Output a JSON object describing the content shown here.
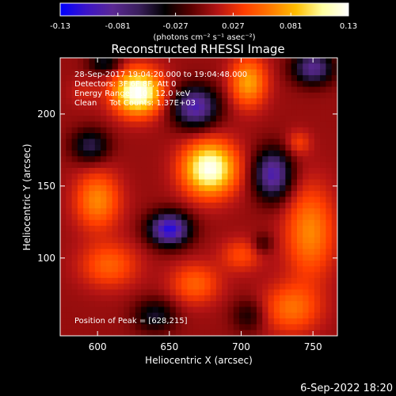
{
  "chart_data": {
    "type": "heatmap",
    "title": "Reconstructed RHESSI Image",
    "xlabel": "Heliocentric X (arcsec)",
    "ylabel": "Heliocentric Y (arcsec)",
    "xlim": [
      574,
      767
    ],
    "ylim": [
      46,
      239
    ],
    "x_ticks": [
      600,
      650,
      700,
      750
    ],
    "y_ticks": [
      100,
      150,
      200
    ],
    "colorbar": {
      "range": [
        -0.13,
        0.13
      ],
      "ticks": [
        "-0.13",
        "-0.081",
        "-0.027",
        "0.027",
        "0.081",
        "0.13"
      ],
      "unit": "(photons cm⁻² s⁻¹ asec⁻²)",
      "colormap": [
        "#0000ff",
        "#3c14c8",
        "#5a2893",
        "#3a1f5c",
        "#000000",
        "#5a0000",
        "#b41414",
        "#ff3c00",
        "#ff7800",
        "#ffbe00",
        "#ffffa0",
        "#ffffff"
      ]
    },
    "annotations": {
      "time_range": "28-Sep-2017 19:04:20.000 to 19:04:48.000",
      "detectors": "Detectors: 3F 6F 8F, Att 0",
      "energy": "Energy Range: 6.0 - 12.0 keV",
      "method": "Clean     Tot Counts: 1.37E+03",
      "peak": "Position of Peak = [628,215]"
    },
    "sources": [
      {
        "x": 678,
        "y": 162,
        "sx": 13,
        "sy": 13,
        "v": 0.125
      },
      {
        "x": 628,
        "y": 215,
        "sx": 12,
        "sy": 11,
        "v": 0.13
      },
      {
        "x": 705,
        "y": 222,
        "sx": 9,
        "sy": 12,
        "v": 0.07
      },
      {
        "x": 740,
        "y": 180,
        "sx": 6,
        "sy": 6,
        "v": 0.03
      },
      {
        "x": 600,
        "y": 140,
        "sx": 11,
        "sy": 14,
        "v": 0.06
      },
      {
        "x": 608,
        "y": 95,
        "sx": 14,
        "sy": 11,
        "v": 0.045
      },
      {
        "x": 668,
        "y": 82,
        "sx": 12,
        "sy": 10,
        "v": 0.045
      },
      {
        "x": 748,
        "y": 118,
        "sx": 12,
        "sy": 22,
        "v": 0.06
      },
      {
        "x": 735,
        "y": 65,
        "sx": 14,
        "sy": 12,
        "v": 0.05
      },
      {
        "x": 700,
        "y": 102,
        "sx": 10,
        "sy": 8,
        "v": 0.035
      },
      {
        "x": 590,
        "y": 215,
        "sx": 7,
        "sy": 7,
        "v": 0.015
      },
      {
        "x": 650,
        "y": 120,
        "sx": 10,
        "sy": 8,
        "v": -0.12
      },
      {
        "x": 668,
        "y": 205,
        "sx": 11,
        "sy": 10,
        "v": -0.1
      },
      {
        "x": 722,
        "y": 158,
        "sx": 9,
        "sy": 12,
        "v": -0.1
      },
      {
        "x": 750,
        "y": 232,
        "sx": 10,
        "sy": 8,
        "v": -0.085
      },
      {
        "x": 595,
        "y": 178,
        "sx": 9,
        "sy": 8,
        "v": -0.06
      },
      {
        "x": 605,
        "y": 235,
        "sx": 8,
        "sy": 5,
        "v": -0.05
      },
      {
        "x": 640,
        "y": 60,
        "sx": 10,
        "sy": 8,
        "v": -0.05
      },
      {
        "x": 705,
        "y": 60,
        "sx": 8,
        "sy": 8,
        "v": -0.035
      },
      {
        "x": 715,
        "y": 110,
        "sx": 5,
        "sy": 5,
        "v": -0.03
      }
    ],
    "background": 0.004
  },
  "footer": {
    "date": "6-Sep-2022 18:20"
  }
}
